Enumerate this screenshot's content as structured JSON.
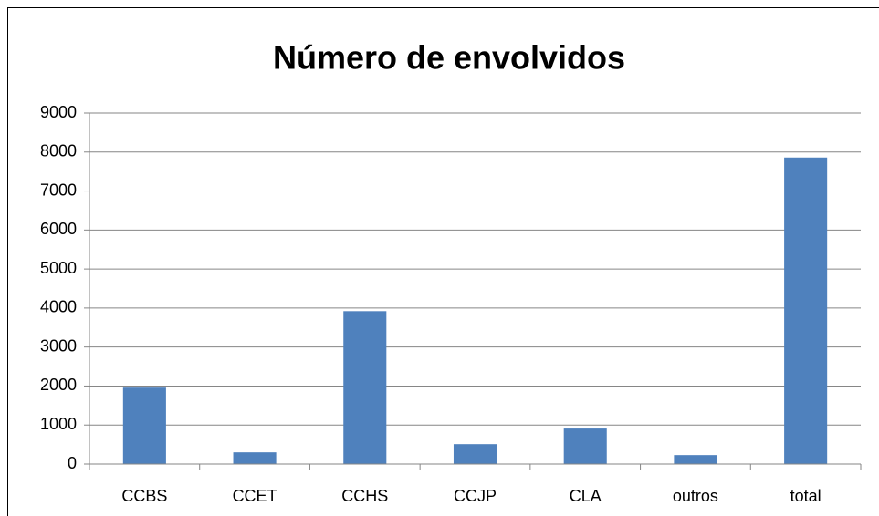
{
  "chart_data": {
    "type": "bar",
    "title": "Número de envolvidos",
    "categories": [
      "CCBS",
      "CCET",
      "CCHS",
      "CCJP",
      "CLA",
      "outros",
      "total"
    ],
    "values": [
      1960,
      300,
      3920,
      510,
      910,
      230,
      7860
    ],
    "color": "#4f81bd",
    "ylim": [
      0,
      9000
    ],
    "yticks": [
      0,
      1000,
      2000,
      3000,
      4000,
      5000,
      6000,
      7000,
      8000,
      9000
    ],
    "grid": true
  }
}
